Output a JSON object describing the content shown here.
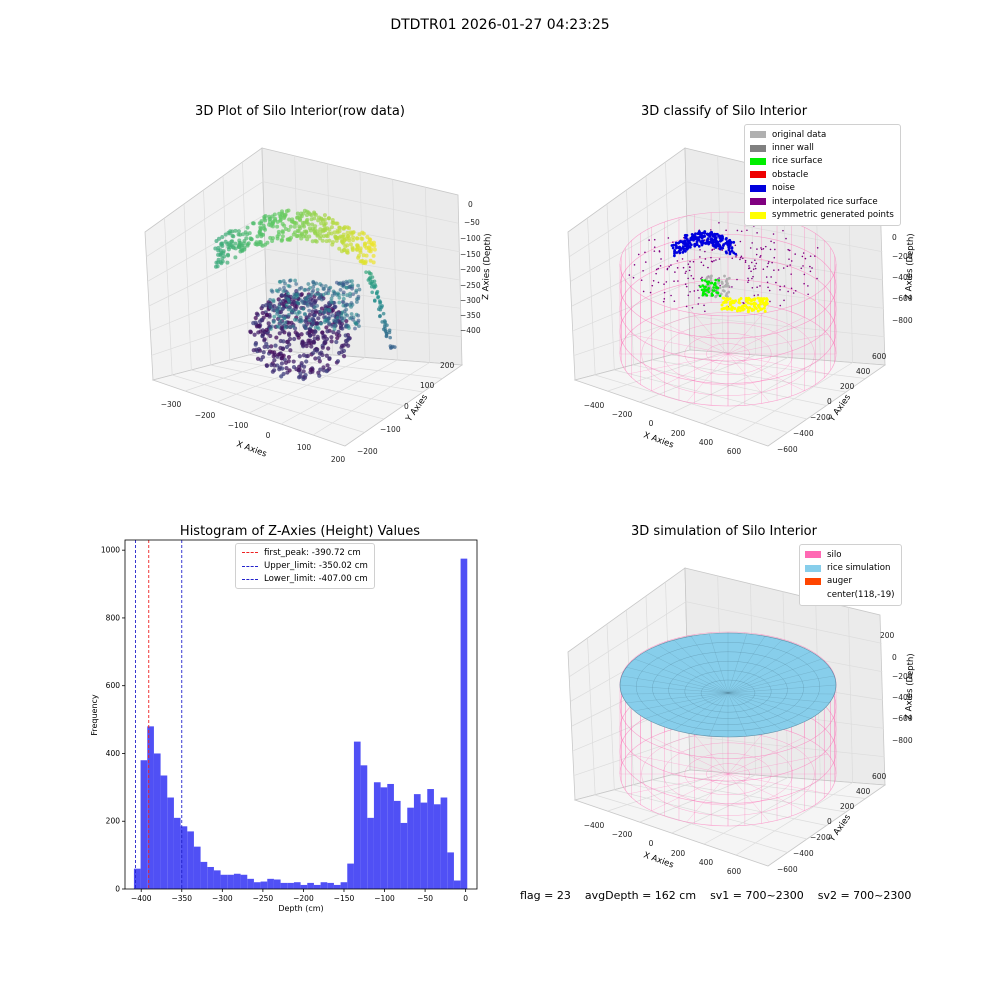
{
  "suptitle": "DTDTR01 2026-01-27 04:23:25",
  "footer": {
    "flag": "flag = 23",
    "avg_depth": "avgDepth = 162 cm",
    "sv1": "sv1 = 700~2300",
    "sv2": "sv2 = 700~2300"
  },
  "chart_data": [
    {
      "type": "scatter",
      "title": "3D Plot of Silo Interior(row data)",
      "xlabel": "X Axies",
      "ylabel": "Y Axies",
      "zlabel": "Z Axies (Depth)",
      "xticks": [
        "−300",
        "−200",
        "−100",
        "0",
        "100",
        "200"
      ],
      "yticks": [
        "−200",
        "−100",
        "0",
        "100",
        "200"
      ],
      "zticks": [
        "0",
        "−50",
        "−100",
        "−150",
        "−200",
        "−250",
        "−300",
        "−350",
        "−400"
      ],
      "colormap": "viridis"
    },
    {
      "type": "scatter",
      "title": "3D classify of Silo Interior",
      "xlabel": "X Axies",
      "ylabel": "Y Axies",
      "zlabel": "Z Axies (Depth)",
      "xticks": [
        "−400",
        "−200",
        "0",
        "200",
        "400",
        "600"
      ],
      "yticks": [
        "−600",
        "−400",
        "−200",
        "0",
        "200",
        "400",
        "600"
      ],
      "zticks": [
        "200",
        "0",
        "−200",
        "−400",
        "−600",
        "−800"
      ],
      "legend": [
        {
          "label": "original data",
          "color": "#b0b0b0"
        },
        {
          "label": "inner wall",
          "color": "#808080"
        },
        {
          "label": "rice surface",
          "color": "#00ee00"
        },
        {
          "label": "obstacle",
          "color": "#ee0000"
        },
        {
          "label": "noise",
          "color": "#0000dd"
        },
        {
          "label": "interpolated rice surface",
          "color": "#800080"
        },
        {
          "label": "symmetric generated points",
          "color": "#ffff00"
        }
      ]
    },
    {
      "type": "bar",
      "title": "Histogram of Z-Axies (Height) Values",
      "xlabel": "Depth (cm)",
      "ylabel": "Frequency",
      "bar_color": "#5050f5",
      "xlim": [
        -420,
        14
      ],
      "ylim": [
        0,
        1030
      ],
      "xticks": [
        -400,
        -350,
        -300,
        -250,
        -200,
        -150,
        -100,
        -50,
        0
      ],
      "xtick_labels": [
        "−400",
        "−350",
        "−300",
        "−250",
        "−200",
        "−150",
        "−100",
        "−50",
        "0"
      ],
      "yticks": [
        0,
        200,
        400,
        600,
        800,
        1000
      ],
      "bins": {
        "start": -409,
        "width": 8.22,
        "values": [
          60,
          380,
          480,
          400,
          335,
          270,
          210,
          185,
          170,
          125,
          80,
          65,
          55,
          42,
          42,
          45,
          42,
          30,
          20,
          22,
          30,
          28,
          18,
          18,
          20,
          12,
          18,
          12,
          20,
          18,
          12,
          20,
          75,
          435,
          365,
          210,
          315,
          300,
          310,
          260,
          195,
          240,
          280,
          255,
          295,
          250,
          270,
          108,
          25,
          975
        ]
      },
      "lines": [
        {
          "label": "first_peak: -390.72 cm",
          "x": -390.72,
          "color": "#ee2222"
        },
        {
          "label": "Upper_limit: -350.02 cm",
          "x": -350.02,
          "color": "#2222cc"
        },
        {
          "label": "Lower_limit: -407.00 cm",
          "x": -407.0,
          "color": "#2222cc"
        }
      ]
    },
    {
      "type": "area",
      "title": "3D simulation of Silo Interior",
      "xlabel": "X Axies",
      "ylabel": "Y Axies",
      "zlabel": "Z Axies (Depth)",
      "xticks": [
        "−400",
        "−200",
        "0",
        "200",
        "400",
        "600"
      ],
      "yticks": [
        "−600",
        "−400",
        "−200",
        "0",
        "200",
        "400",
        "600"
      ],
      "zticks": [
        "200",
        "0",
        "−200",
        "−400",
        "−600",
        "−800"
      ],
      "legend": [
        {
          "label": "silo",
          "color": "#ff69b4"
        },
        {
          "label": "rice simulation",
          "color": "#87ceeb"
        },
        {
          "label": "auger",
          "color": "#ff4500"
        },
        {
          "label": "center(118,-19)",
          "color": ""
        }
      ]
    }
  ]
}
